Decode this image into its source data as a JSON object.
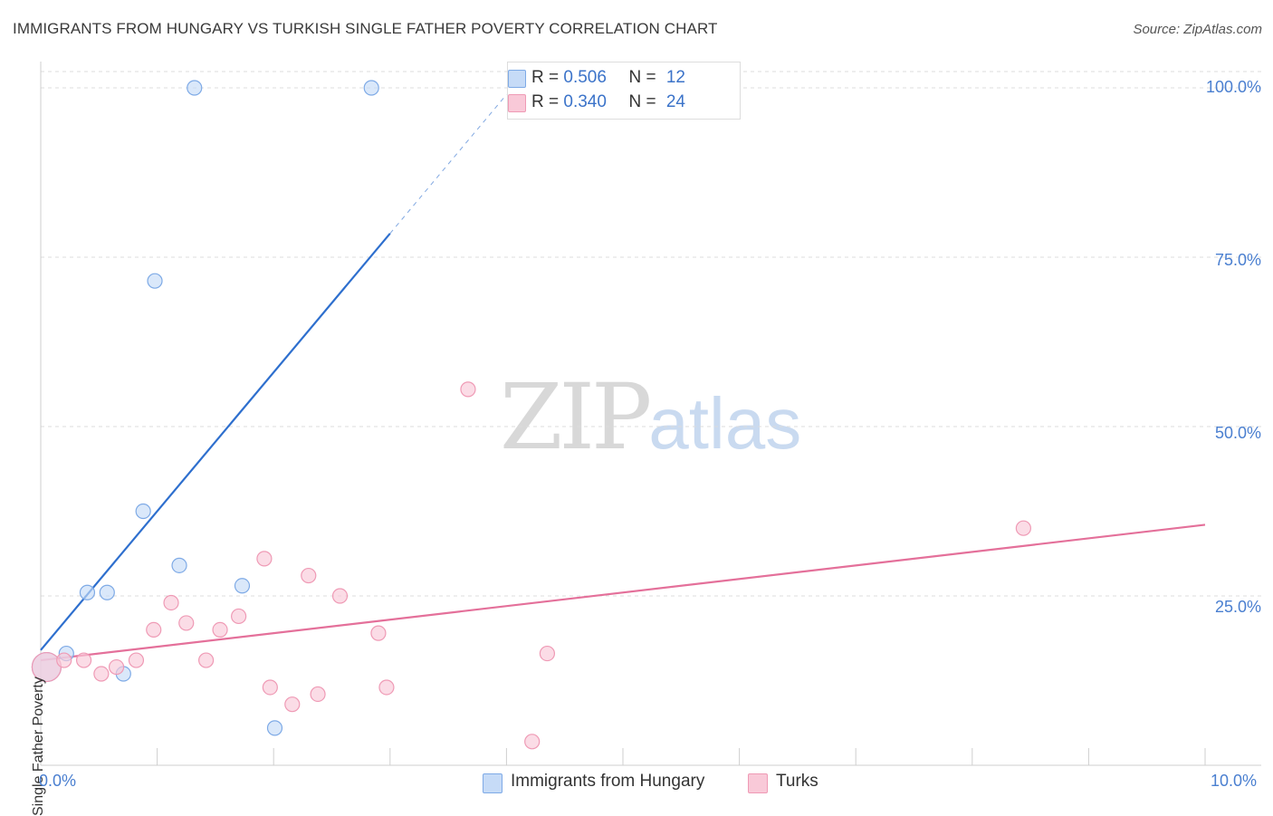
{
  "header": {
    "title": "IMMIGRANTS FROM HUNGARY VS TURKISH SINGLE FATHER POVERTY CORRELATION CHART",
    "source": "Source: ZipAtlas.com"
  },
  "watermark": {
    "zip": "ZIP",
    "atlas": "atlas"
  },
  "legend_top": {
    "rows": [
      {
        "r_label": "R = ",
        "r_value": "0.506",
        "n_label": "N = ",
        "n_value": "12",
        "color": "#b9d3f5"
      },
      {
        "r_label": "R = ",
        "r_value": "0.340",
        "n_label": "N = ",
        "n_value": "24",
        "color": "#f9c5d5"
      }
    ]
  },
  "legend_bottom": {
    "items": [
      {
        "label": "Immigrants from Hungary",
        "color": "#b9d3f5"
      },
      {
        "label": "Turks",
        "color": "#f9c5d5"
      }
    ]
  },
  "chart_data": {
    "type": "scatter",
    "title": "IMMIGRANTS FROM HUNGARY VS TURKISH SINGLE FATHER POVERTY CORRELATION CHART",
    "xlabel": "",
    "ylabel": "Single Father Poverty",
    "xlim": [
      0,
      10
    ],
    "ylim": [
      0,
      100
    ],
    "x_tick_labels": [
      "0.0%",
      "10.0%"
    ],
    "y_ticks": [
      25,
      50,
      75,
      100
    ],
    "y_tick_labels": [
      "25.0%",
      "50.0%",
      "75.0%",
      "100.0%"
    ],
    "grid": true,
    "series": [
      {
        "name": "Immigrants from Hungary",
        "color": "#7eaae6",
        "fill": "#c6dbf7",
        "points": [
          {
            "x": 0.05,
            "y": 14.5,
            "large": true
          },
          {
            "x": 0.22,
            "y": 16.5
          },
          {
            "x": 0.4,
            "y": 25.5
          },
          {
            "x": 0.57,
            "y": 25.5
          },
          {
            "x": 0.71,
            "y": 13.5
          },
          {
            "x": 0.88,
            "y": 37.5
          },
          {
            "x": 0.98,
            "y": 71.5
          },
          {
            "x": 1.19,
            "y": 29.5
          },
          {
            "x": 1.32,
            "y": 100
          },
          {
            "x": 1.73,
            "y": 26.5
          },
          {
            "x": 2.01,
            "y": 5.5
          },
          {
            "x": 2.84,
            "y": 100
          }
        ],
        "trend": {
          "x0": 0.0,
          "y0": 17.0,
          "x1": 3.0,
          "y1": 78.5,
          "dashed_to_x": 4.0,
          "dashed_to_y": 99.0,
          "color": "#2e6fce"
        }
      },
      {
        "name": "Turks",
        "color": "#ef9ab5",
        "fill": "#f9c9d8",
        "points": [
          {
            "x": 0.05,
            "y": 14.5,
            "large": true
          },
          {
            "x": 0.2,
            "y": 15.5
          },
          {
            "x": 0.37,
            "y": 15.5
          },
          {
            "x": 0.52,
            "y": 13.5
          },
          {
            "x": 0.65,
            "y": 14.5
          },
          {
            "x": 0.82,
            "y": 15.5
          },
          {
            "x": 0.97,
            "y": 20.0
          },
          {
            "x": 1.12,
            "y": 24.0
          },
          {
            "x": 1.25,
            "y": 21.0
          },
          {
            "x": 1.42,
            "y": 15.5
          },
          {
            "x": 1.54,
            "y": 20.0
          },
          {
            "x": 1.7,
            "y": 22.0
          },
          {
            "x": 1.92,
            "y": 30.5
          },
          {
            "x": 1.97,
            "y": 11.5
          },
          {
            "x": 2.16,
            "y": 9.0
          },
          {
            "x": 2.3,
            "y": 28.0
          },
          {
            "x": 2.38,
            "y": 10.5
          },
          {
            "x": 2.57,
            "y": 25.0
          },
          {
            "x": 2.9,
            "y": 19.5
          },
          {
            "x": 2.97,
            "y": 11.5
          },
          {
            "x": 3.67,
            "y": 55.5
          },
          {
            "x": 4.22,
            "y": 3.5
          },
          {
            "x": 4.35,
            "y": 16.5
          },
          {
            "x": 8.44,
            "y": 35.0
          }
        ],
        "trend": {
          "x0": 0.0,
          "y0": 15.5,
          "x1": 10.0,
          "y1": 35.5,
          "color": "#e4709a"
        }
      }
    ]
  }
}
